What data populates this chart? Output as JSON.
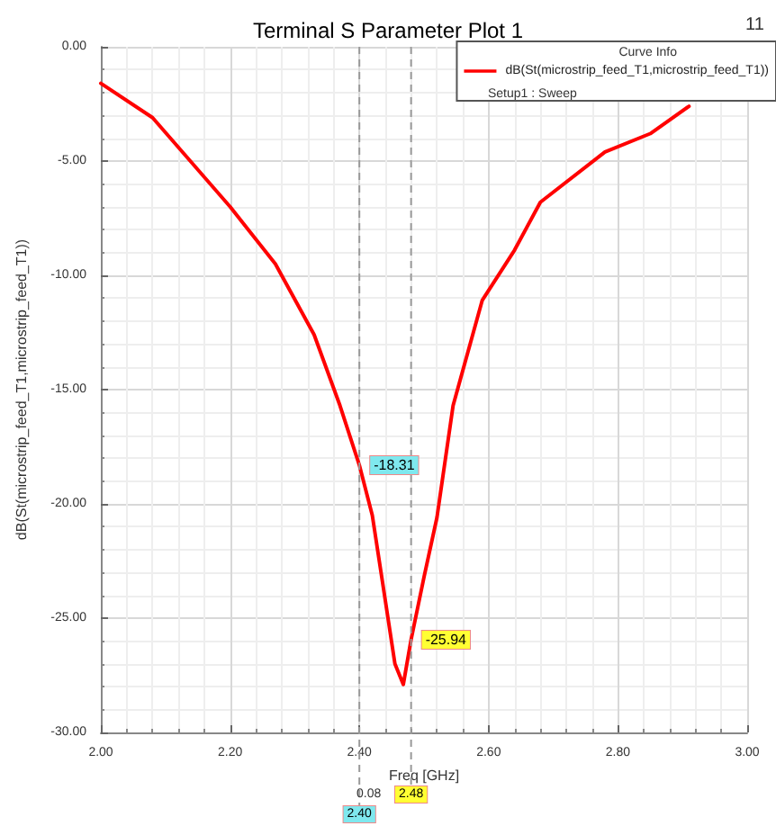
{
  "chart_data": {
    "type": "line",
    "title": "Terminal S Parameter Plot 1",
    "xlabel": "Freq [GHz]",
    "ylabel": "dB(St(microstrip_feed_T1,microstrip_feed_T1))",
    "legend_title": "Curve Info",
    "x": [
      2.0,
      2.08,
      2.2,
      2.27,
      2.33,
      2.37,
      2.4,
      2.42,
      2.44,
      2.455,
      2.468,
      2.48,
      2.5,
      2.52,
      2.545,
      2.59,
      2.64,
      2.68,
      2.78,
      2.85,
      2.91
    ],
    "series": [
      {
        "name": "dB(St(microstrip_feed_T1,microstrip_feed_T1))",
        "color": "#ff0000",
        "values": [
          -1.6,
          -3.1,
          -7.0,
          -9.5,
          -12.6,
          -15.7,
          -18.31,
          -20.5,
          -24.2,
          -27.0,
          -27.9,
          -25.94,
          -23.2,
          -20.6,
          -15.7,
          -11.1,
          -8.9,
          -6.8,
          -4.6,
          -3.8,
          -2.6
        ]
      }
    ],
    "xlim": [
      2.0,
      3.0
    ],
    "xticks": [
      {
        "value": 2.0,
        "label": "2.00"
      },
      {
        "value": 2.2,
        "label": "2.20"
      },
      {
        "value": 2.4,
        "label": "2.40"
      },
      {
        "value": 2.6,
        "label": "2.60"
      },
      {
        "value": 2.8,
        "label": "2.80"
      },
      {
        "value": 3.0,
        "label": "3.00"
      }
    ],
    "ylim": [
      -30,
      0
    ],
    "yticks": [
      {
        "value": -30,
        "label": "-30.00"
      },
      {
        "value": -25,
        "label": "-25.00"
      },
      {
        "value": -20,
        "label": "-20.00"
      },
      {
        "value": -15,
        "label": "-15.00"
      },
      {
        "value": -10,
        "label": "-10.00"
      },
      {
        "value": -5,
        "label": "-5.00"
      },
      {
        "value": 0,
        "label": "0.00"
      }
    ],
    "ref_lines": [
      {
        "axis": "x",
        "value": 2.4,
        "label": "2.40",
        "color": "#999999",
        "line_style": "dashed"
      },
      {
        "axis": "x",
        "value": 2.48,
        "label": "2.48",
        "color": "#999999",
        "line_style": "dashed"
      }
    ],
    "annotations": [
      {
        "text": "-18.31",
        "x": 2.4,
        "y": -18.31
      },
      {
        "text": "-25.94",
        "x": 2.48,
        "y": -25.94
      },
      "11",
      "0.08",
      "Setup1 : Sweep"
    ],
    "grid": true,
    "legend": "top right",
    "marker": "none",
    "line_style": "solid"
  }
}
